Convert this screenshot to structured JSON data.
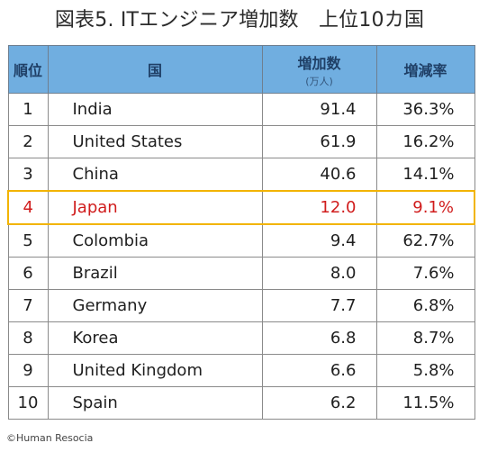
{
  "title": "図表5. ITエンジニア増加数　上位10カ国",
  "headers": {
    "rank": "順位",
    "country": "国",
    "increase": "増加数",
    "increase_unit": "(万人)",
    "rate": "増減率"
  },
  "rows": [
    {
      "rank": "1",
      "country": "India",
      "increase": "91.4",
      "rate": "36.3%"
    },
    {
      "rank": "2",
      "country": "United States",
      "increase": "61.9",
      "rate": "16.2%"
    },
    {
      "rank": "3",
      "country": "China",
      "increase": "40.6",
      "rate": "14.1%"
    },
    {
      "rank": "4",
      "country": "Japan",
      "increase": "12.0",
      "rate": "9.1%"
    },
    {
      "rank": "5",
      "country": "Colombia",
      "increase": "9.4",
      "rate": "62.7%"
    },
    {
      "rank": "6",
      "country": "Brazil",
      "increase": "8.0",
      "rate": "7.6%"
    },
    {
      "rank": "7",
      "country": "Germany",
      "increase": "7.7",
      "rate": "6.8%"
    },
    {
      "rank": "8",
      "country": "Korea",
      "increase": "6.8",
      "rate": "8.7%"
    },
    {
      "rank": "9",
      "country": "United Kingdom",
      "increase": "6.6",
      "rate": "5.8%"
    },
    {
      "rank": "10",
      "country": "Spain",
      "increase": "6.2",
      "rate": "11.5%"
    }
  ],
  "highlight_row": 3,
  "colors": {
    "header_bg": "#70aee0",
    "highlight_text": "#d01c1c",
    "highlight_border": "#f2b400"
  },
  "credit": "©Human Resocia"
}
